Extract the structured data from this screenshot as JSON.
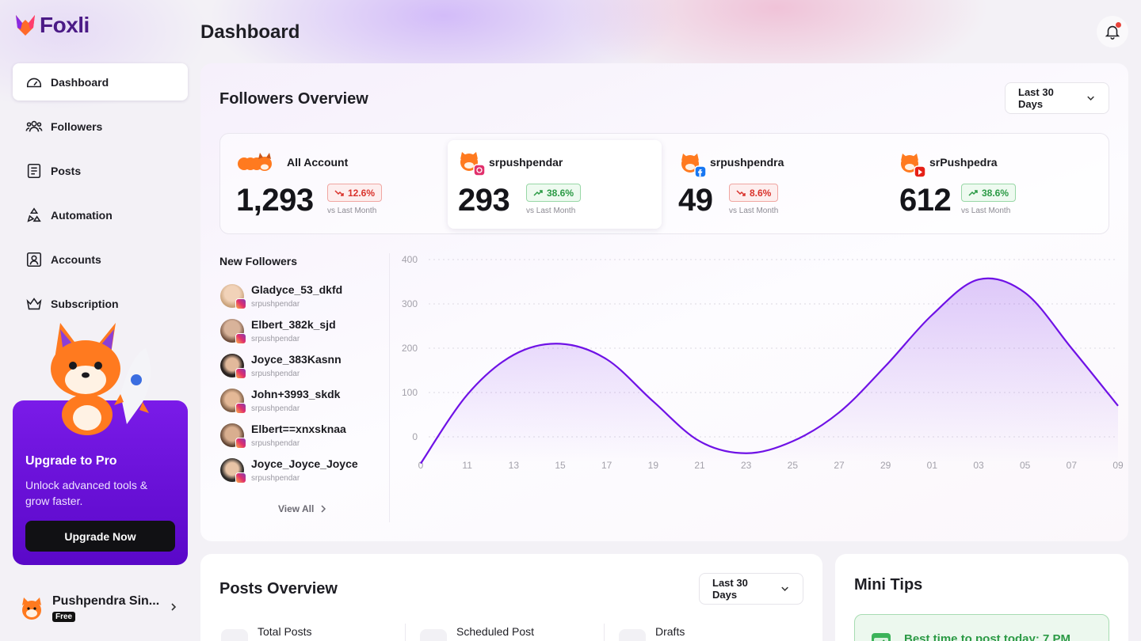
{
  "app": {
    "name": "Foxli"
  },
  "sidebar": {
    "items": [
      {
        "label": "Dashboard",
        "icon": "gauge-icon",
        "active": true
      },
      {
        "label": "Followers",
        "icon": "users-icon"
      },
      {
        "label": "Posts",
        "icon": "document-icon"
      },
      {
        "label": "Automation",
        "icon": "recycle-icon"
      },
      {
        "label": "Accounts",
        "icon": "user-square-icon"
      },
      {
        "label": "Subscription",
        "icon": "crown-icon"
      }
    ],
    "promo": {
      "title": "Upgrade to Pro",
      "description": "Unlock advanced tools & grow faster.",
      "button": "Upgrade Now"
    },
    "user": {
      "name": "Pushpendra Sin...",
      "plan": "Free"
    }
  },
  "header": {
    "title": "Dashboard"
  },
  "followers_overview": {
    "title": "Followers Overview",
    "range": "Last 30 Days",
    "stats": [
      {
        "name": "All Account",
        "value": "1,293",
        "change": "12.6%",
        "trend": "down",
        "compare": "vs Last Month",
        "platform": "all"
      },
      {
        "name": "srpushpendar",
        "value": "293",
        "change": "38.6%",
        "trend": "up",
        "compare": "vs Last Month",
        "platform": "instagram"
      },
      {
        "name": "srpushpendra",
        "value": "49",
        "change": "8.6%",
        "trend": "down",
        "compare": "vs Last Month",
        "platform": "facebook"
      },
      {
        "name": "srPushpedra",
        "value": "612",
        "change": "38.6%",
        "trend": "up",
        "compare": "vs Last Month",
        "platform": "youtube"
      }
    ],
    "new_followers": {
      "title": "New Followers",
      "items": [
        {
          "name": "Gladyce_53_dkfd",
          "handle": "srpushpendar"
        },
        {
          "name": "Elbert_382k_sjd",
          "handle": "srpushpendar"
        },
        {
          "name": "Joyce_383Kasnn",
          "handle": "srpushpendar"
        },
        {
          "name": "John+3993_skdk",
          "handle": "srpushpendar"
        },
        {
          "name": "Elbert==xnxsknaa",
          "handle": "srpushpendar"
        },
        {
          "name": "Joyce_Joyce_Joyce",
          "handle": "srpushpendar"
        }
      ],
      "view_all": "View All"
    }
  },
  "chart_data": {
    "type": "area",
    "categories": [
      "0",
      "11",
      "13",
      "15",
      "17",
      "19",
      "21",
      "23",
      "25",
      "27",
      "29",
      "01",
      "03",
      "05",
      "07",
      "09"
    ],
    "values": [
      -60,
      95,
      185,
      210,
      175,
      80,
      -10,
      -37,
      -10,
      55,
      160,
      275,
      355,
      325,
      200,
      70
    ],
    "ylim": [
      0,
      400
    ],
    "yticks": [
      "400",
      "300",
      "200",
      "100",
      "0"
    ],
    "grid": true,
    "color": "#6f12e6"
  },
  "posts_overview": {
    "title": "Posts Overview",
    "range": "Last 30 Days",
    "stats": [
      {
        "label": "Total Posts"
      },
      {
        "label": "Scheduled Post"
      },
      {
        "label": "Drafts"
      }
    ]
  },
  "mini_tips": {
    "title": "Mini Tips",
    "tip": "Best time to post today: 7 PM"
  },
  "colors": {
    "accent": "#6f12e6",
    "down": "#d9322b",
    "up": "#2b9a45"
  }
}
